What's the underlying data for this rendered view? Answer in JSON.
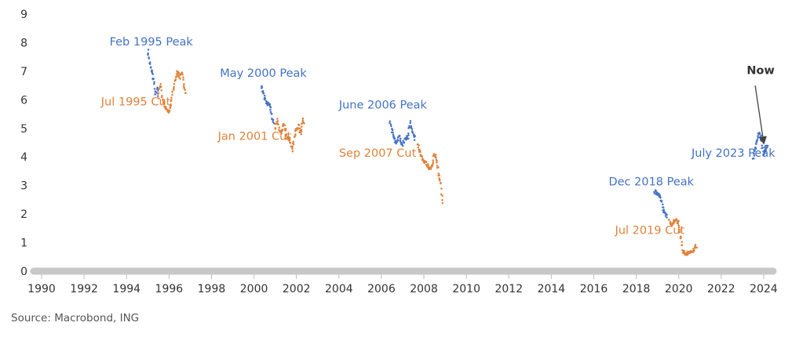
{
  "chart_data": {
    "type": "scatter",
    "xlim": [
      1990,
      2024
    ],
    "ylim": [
      0,
      9
    ],
    "x_ticks": [
      "1990",
      "1992",
      "1994",
      "1996",
      "1998",
      "2000",
      "2002",
      "2004",
      "2006",
      "2008",
      "2010",
      "2012",
      "2014",
      "2016",
      "2018",
      "2020",
      "2022",
      "2024"
    ],
    "y_ticks": [
      "0",
      "1",
      "2",
      "3",
      "4",
      "5",
      "6",
      "7",
      "8",
      "9"
    ],
    "grid": false,
    "colors": {
      "hold": "#4472c4",
      "cut": "#e0823a",
      "axis": "#c8c8c8",
      "text": "#333333"
    },
    "series": [
      {
        "color": "hold",
        "points": [
          [
            1995.0,
            7.7
          ],
          [
            1995.1,
            7.3
          ],
          [
            1995.2,
            7.0
          ],
          [
            1995.3,
            6.6
          ],
          [
            1995.35,
            6.2
          ],
          [
            1995.45,
            6.4
          ],
          [
            1995.5,
            6.1
          ]
        ]
      },
      {
        "color": "cut",
        "points": [
          [
            1995.5,
            6.1
          ],
          [
            1995.6,
            6.6
          ],
          [
            1995.7,
            6.0
          ],
          [
            1995.85,
            5.7
          ],
          [
            1996.0,
            5.6
          ],
          [
            1996.1,
            5.9
          ],
          [
            1996.25,
            6.6
          ],
          [
            1996.4,
            7.0
          ],
          [
            1996.5,
            6.8
          ],
          [
            1996.6,
            7.0
          ],
          [
            1996.7,
            6.5
          ],
          [
            1996.8,
            6.2
          ]
        ]
      },
      {
        "color": "hold",
        "points": [
          [
            2000.35,
            6.5
          ],
          [
            2000.45,
            6.2
          ],
          [
            2000.6,
            5.9
          ],
          [
            2000.75,
            5.8
          ],
          [
            2000.85,
            5.4
          ],
          [
            2000.95,
            5.1
          ]
        ]
      },
      {
        "color": "cut",
        "points": [
          [
            2001.0,
            5.0
          ],
          [
            2001.1,
            5.3
          ],
          [
            2001.25,
            4.8
          ],
          [
            2001.4,
            5.2
          ],
          [
            2001.55,
            4.7
          ],
          [
            2001.7,
            4.6
          ],
          [
            2001.8,
            4.2
          ],
          [
            2001.95,
            4.9
          ],
          [
            2002.1,
            5.1
          ],
          [
            2002.2,
            4.8
          ],
          [
            2002.3,
            5.3
          ],
          [
            2002.35,
            5.1
          ]
        ]
      },
      {
        "color": "hold",
        "points": [
          [
            2006.4,
            5.2
          ],
          [
            2006.55,
            4.8
          ],
          [
            2006.7,
            4.5
          ],
          [
            2006.85,
            4.7
          ],
          [
            2007.0,
            4.4
          ],
          [
            2007.1,
            4.6
          ],
          [
            2007.25,
            4.7
          ],
          [
            2007.35,
            5.2
          ],
          [
            2007.45,
            4.9
          ],
          [
            2007.6,
            4.6
          ]
        ]
      },
      {
        "color": "cut",
        "points": [
          [
            2007.7,
            4.5
          ],
          [
            2007.8,
            4.2
          ],
          [
            2007.95,
            3.9
          ],
          [
            2008.1,
            3.8
          ],
          [
            2008.25,
            3.6
          ],
          [
            2008.4,
            3.7
          ],
          [
            2008.5,
            4.1
          ],
          [
            2008.6,
            3.9
          ],
          [
            2008.7,
            3.4
          ],
          [
            2008.8,
            3.0
          ],
          [
            2008.9,
            2.2
          ]
        ]
      },
      {
        "color": "hold",
        "points": [
          [
            2018.85,
            2.8
          ],
          [
            2019.0,
            2.7
          ],
          [
            2019.1,
            2.6
          ],
          [
            2019.2,
            2.4
          ],
          [
            2019.3,
            2.1
          ],
          [
            2019.45,
            1.9
          ]
        ]
      },
      {
        "color": "cut",
        "points": [
          [
            2019.55,
            1.8
          ],
          [
            2019.65,
            1.6
          ],
          [
            2019.8,
            1.8
          ],
          [
            2020.0,
            1.7
          ],
          [
            2020.1,
            1.2
          ],
          [
            2020.2,
            0.7
          ],
          [
            2020.35,
            0.6
          ],
          [
            2020.5,
            0.7
          ],
          [
            2020.6,
            0.65
          ],
          [
            2020.75,
            0.8
          ],
          [
            2020.85,
            0.9
          ]
        ]
      },
      {
        "color": "hold",
        "points": [
          [
            2023.5,
            3.9
          ],
          [
            2023.6,
            4.3
          ],
          [
            2023.7,
            4.6
          ],
          [
            2023.8,
            4.9
          ],
          [
            2023.9,
            4.5
          ],
          [
            2024.0,
            4.1
          ],
          [
            2024.1,
            4.3
          ],
          [
            2024.2,
            4.4
          ]
        ]
      }
    ],
    "annotations": [
      {
        "text": "Feb 1995 Peak",
        "color": "hold",
        "x": 1993.2,
        "y": 7.9
      },
      {
        "text": "Jul 1995 Cut",
        "color": "cut",
        "x": 1992.8,
        "y": 5.8
      },
      {
        "text": "May 2000 Peak",
        "color": "hold",
        "x": 1998.4,
        "y": 6.8
      },
      {
        "text": "Jan 2001 Cut",
        "color": "cut",
        "x": 1998.3,
        "y": 4.6
      },
      {
        "text": "June 2006 Peak",
        "color": "hold",
        "x": 2004.0,
        "y": 5.7
      },
      {
        "text": "Sep 2007 Cut",
        "color": "cut",
        "x": 2004.0,
        "y": 4.0
      },
      {
        "text": "Dec 2018 Peak",
        "color": "hold",
        "x": 2016.7,
        "y": 3.0
      },
      {
        "text": "Jul 2019 Cut",
        "color": "cut",
        "x": 2017.0,
        "y": 1.3
      },
      {
        "text": "July 2023 Peak",
        "color": "hold",
        "x": 2020.6,
        "y": 4.0
      },
      {
        "text": "Now",
        "color": "text",
        "x": 2023.2,
        "y": 6.9,
        "bold": true
      }
    ],
    "arrow": {
      "from": [
        2023.6,
        6.5
      ],
      "to": [
        2024.0,
        4.5
      ]
    },
    "source": "Source: Macrobond, ING"
  }
}
